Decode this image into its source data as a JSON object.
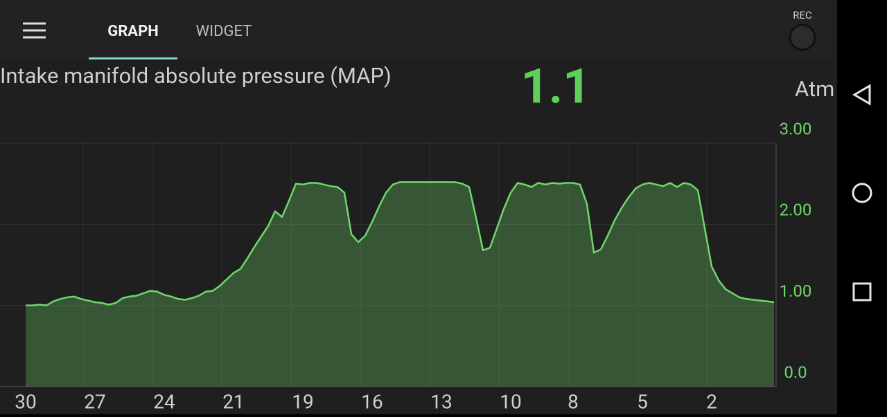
{
  "header": {
    "tabs": [
      "GRAPH",
      "WIDGET"
    ],
    "rec": "REC"
  },
  "sensor": {
    "title": "Intake manifold absolute pressure (MAP)",
    "value": 1.1,
    "unit": "Atm"
  },
  "chart_data": {
    "type": "area",
    "categories": [
      "30",
      null,
      null,
      null,
      null,
      null,
      null,
      null,
      null,
      null,
      "27",
      null,
      null,
      null,
      null,
      null,
      null,
      null,
      null,
      null,
      "24",
      null,
      null,
      null,
      null,
      null,
      null,
      null,
      null,
      null,
      "21",
      null,
      null,
      null,
      null,
      null,
      null,
      null,
      null,
      null,
      "19",
      null,
      null,
      null,
      null,
      null,
      null,
      null,
      null,
      null,
      "16",
      null,
      null,
      null,
      null,
      null,
      null,
      null,
      null,
      null,
      "13",
      null,
      null,
      null,
      null,
      null,
      null,
      null,
      null,
      null,
      "10",
      null,
      null,
      null,
      null,
      null,
      null,
      null,
      null,
      "8",
      null,
      null,
      null,
      null,
      null,
      null,
      null,
      null,
      null,
      "5",
      null,
      null,
      null,
      null,
      null,
      null,
      null,
      null,
      null,
      "2",
      null,
      null,
      null,
      null,
      null,
      null,
      null,
      null,
      null
    ],
    "series": [
      {
        "color": "#6fd86a",
        "values": [
          1.0,
          1.0,
          1.01,
          1.0,
          1.05,
          1.08,
          1.1,
          1.11,
          1.08,
          1.06,
          1.04,
          1.03,
          1.01,
          1.03,
          1.09,
          1.11,
          1.12,
          1.15,
          1.18,
          1.17,
          1.13,
          1.11,
          1.08,
          1.07,
          1.09,
          1.12,
          1.17,
          1.18,
          1.24,
          1.32,
          1.4,
          1.45,
          1.58,
          1.72,
          1.85,
          1.98,
          2.16,
          2.09,
          2.29,
          2.5,
          2.49,
          2.51,
          2.51,
          2.49,
          2.47,
          2.46,
          2.39,
          1.88,
          1.78,
          1.86,
          2.03,
          2.22,
          2.39,
          2.49,
          2.52,
          2.52,
          2.52,
          2.52,
          2.52,
          2.52,
          2.52,
          2.52,
          2.52,
          2.5,
          2.46,
          2.08,
          1.68,
          1.71,
          1.95,
          2.19,
          2.39,
          2.51,
          2.49,
          2.46,
          2.51,
          2.49,
          2.51,
          2.5,
          2.51,
          2.51,
          2.49,
          2.25,
          1.65,
          1.69,
          1.86,
          2.05,
          2.2,
          2.33,
          2.44,
          2.49,
          2.51,
          2.49,
          2.47,
          2.51,
          2.46,
          2.51,
          2.49,
          2.42,
          1.95,
          1.48,
          1.31,
          1.2,
          1.15,
          1.1,
          1.08,
          1.07,
          1.06,
          1.05,
          1.04
        ]
      }
    ],
    "ylim": [
      0,
      3
    ],
    "yticks": [
      {
        "value": 3,
        "label": "3.00"
      },
      {
        "value": 2,
        "label": "2.00"
      },
      {
        "value": 1,
        "label": "1.00"
      },
      {
        "value": 0,
        "label": "0.0"
      }
    ],
    "grid": true
  }
}
